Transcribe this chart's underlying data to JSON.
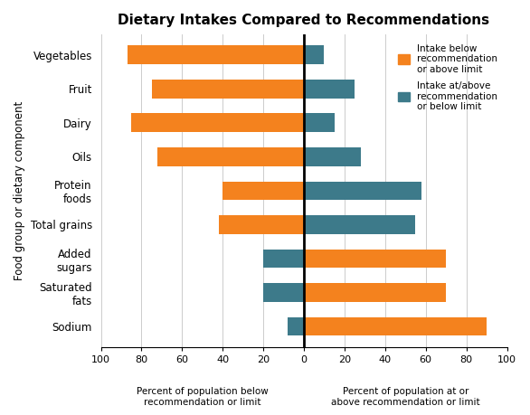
{
  "title": "Dietary Intakes Compared to Recommendations",
  "categories": [
    "Sodium",
    "Saturated\nfats",
    "Added\nsugars",
    "Total grains",
    "Protein\nfoods",
    "Oils",
    "Dairy",
    "Fruit",
    "Vegetables"
  ],
  "orange_values": [
    90,
    70,
    70,
    -42,
    -40,
    -72,
    -85,
    -75,
    -87
  ],
  "teal_values": [
    -8,
    -20,
    -20,
    55,
    58,
    28,
    15,
    25,
    10
  ],
  "orange_color": "#F4821E",
  "teal_color": "#3D7A8A",
  "xlabel_left": "Percent of population below\nrecommendation or limit",
  "xlabel_right": "Percent of population at or\nabove recommendation or limit",
  "ylabel": "Food group or dietary component",
  "legend_orange": "Intake below\nrecommendation\nor above limit",
  "legend_teal": "Intake at/above\nrecommendation\nor below limit",
  "xlim": [
    -100,
    100
  ],
  "xticks": [
    -100,
    -80,
    -60,
    -40,
    -20,
    0,
    20,
    40,
    60,
    80,
    100
  ],
  "xtick_labels": [
    "100",
    "80",
    "60",
    "40",
    "20",
    "0",
    "20",
    "40",
    "60",
    "80",
    "100"
  ],
  "background_color": "#ffffff",
  "bar_height": 0.55,
  "figsize": [
    5.86,
    4.59
  ],
  "dpi": 100
}
